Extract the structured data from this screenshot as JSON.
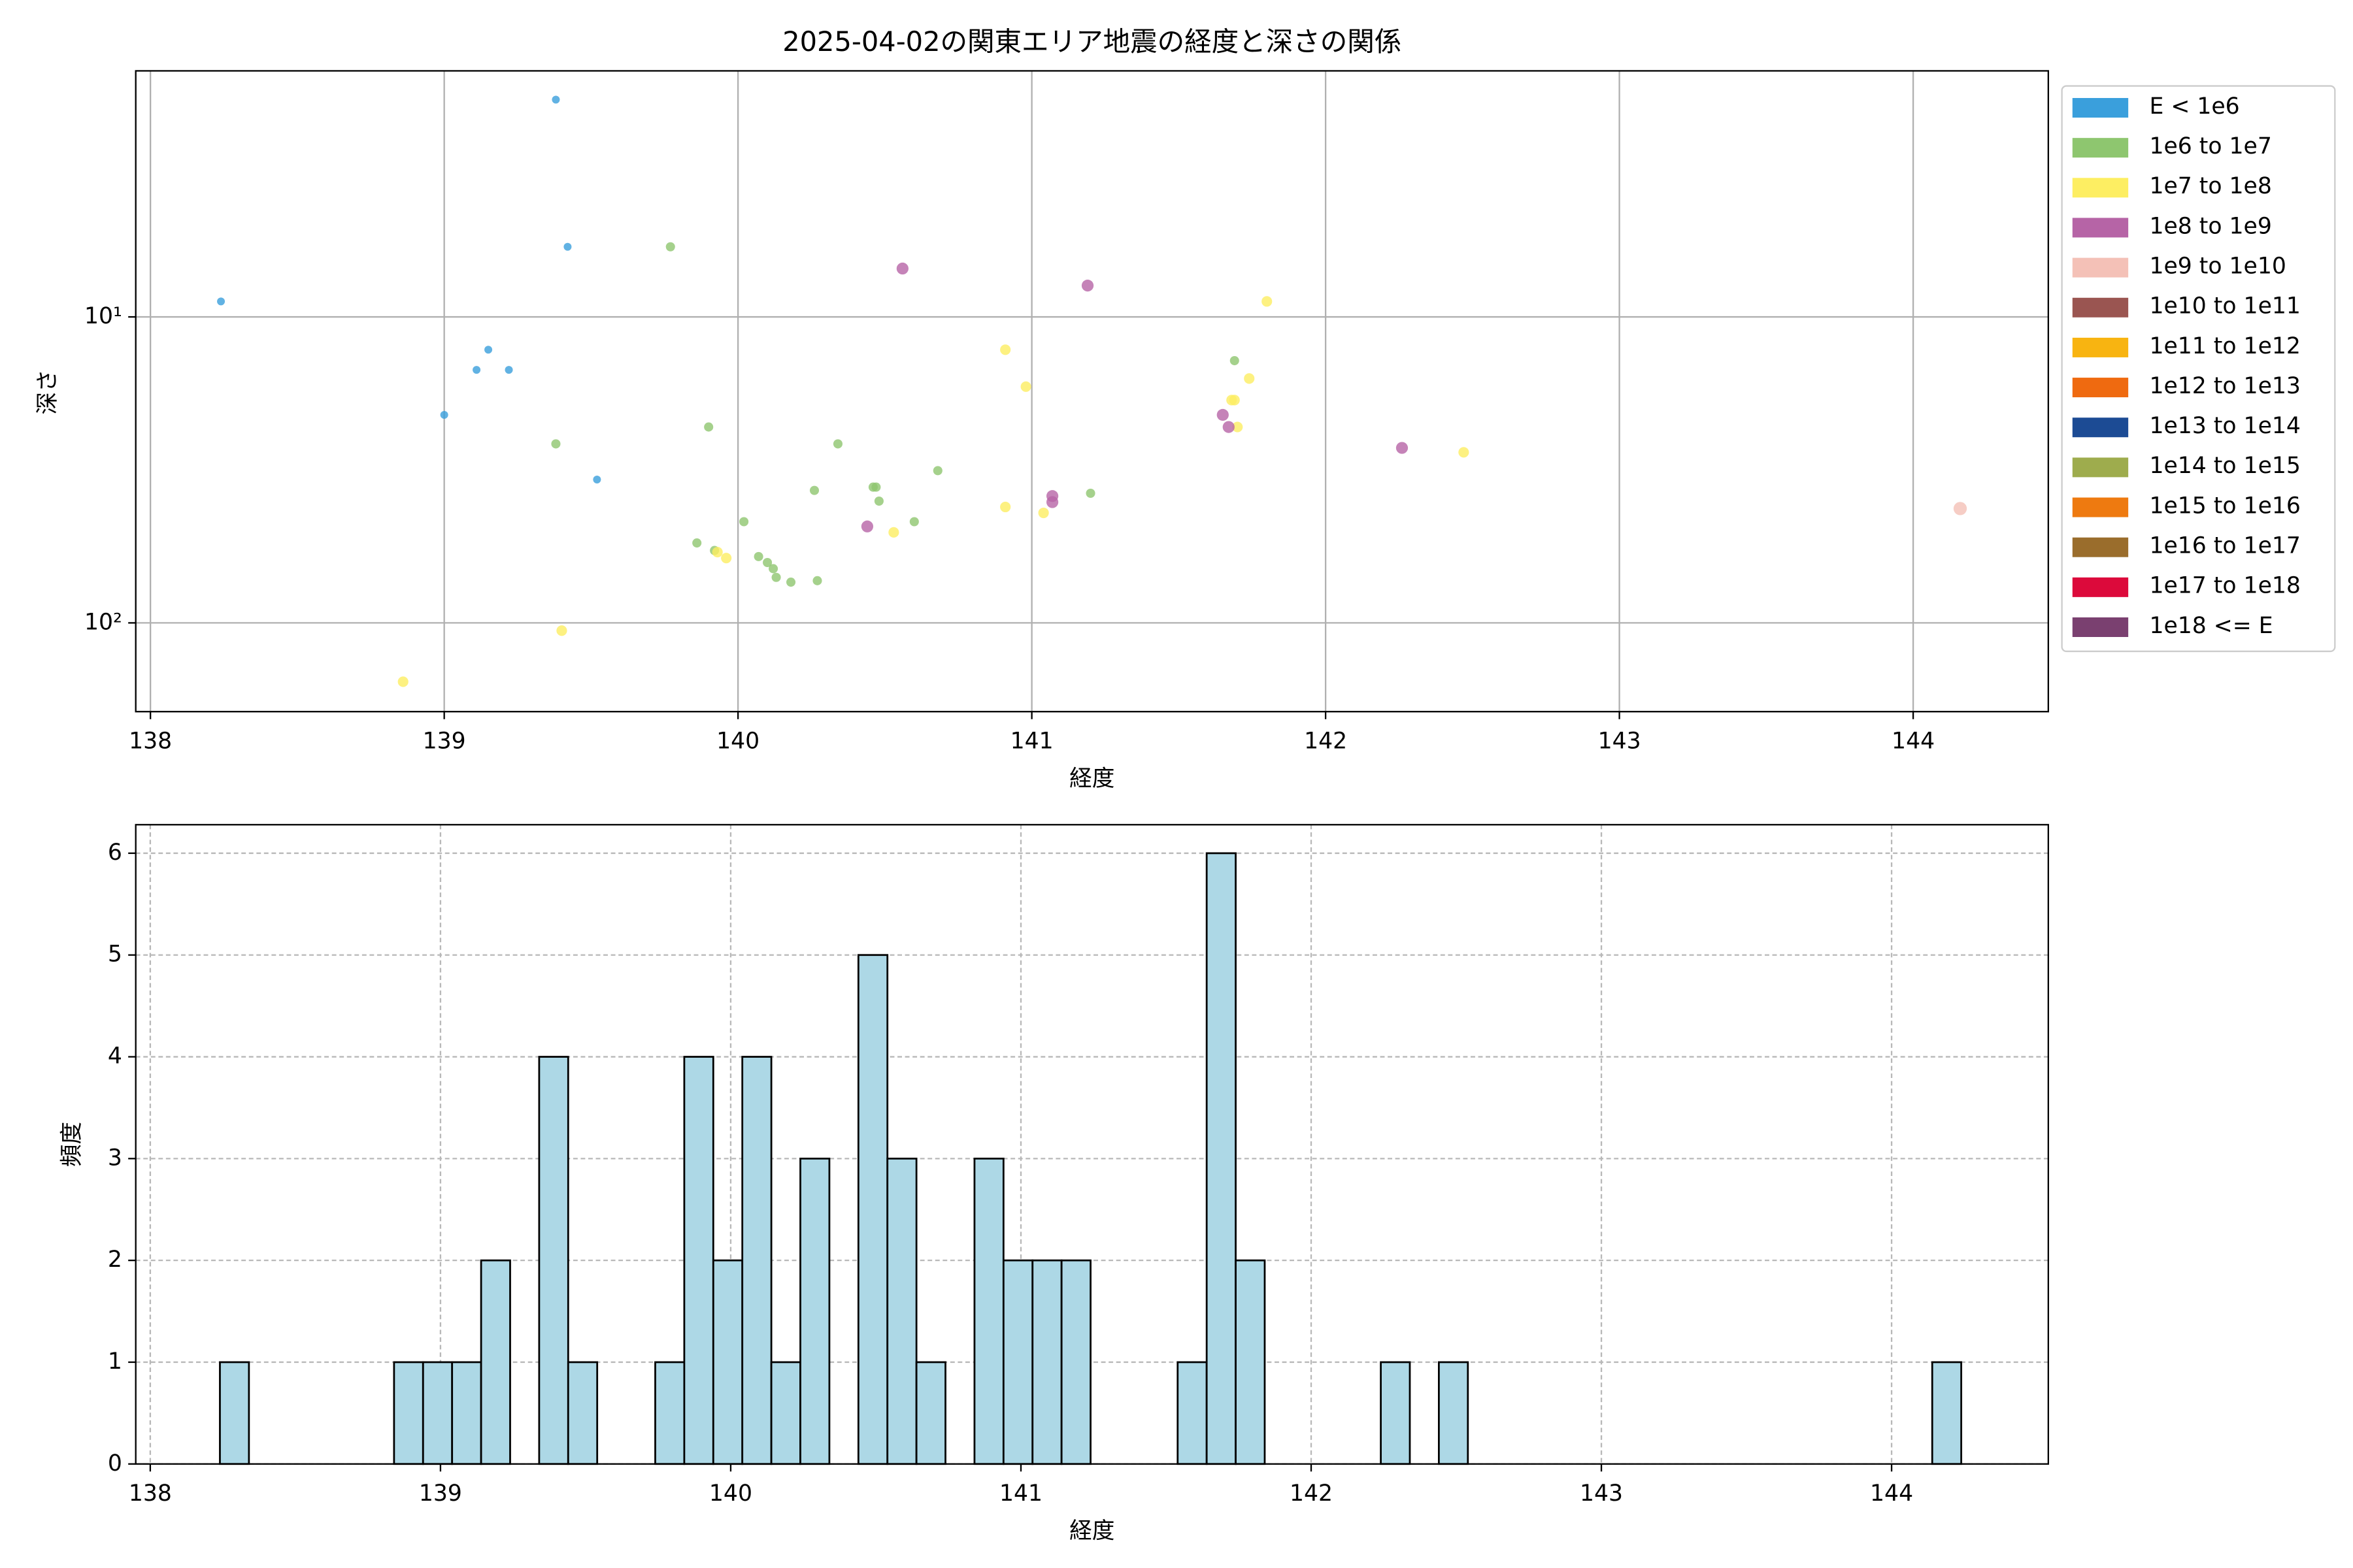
{
  "chart_data": [
    {
      "type": "scatter",
      "title": "2025-04-02の関東エリア地震の経度と深さの関係",
      "xlabel": "経度",
      "ylabel": "深さ",
      "xlim": [
        137.95,
        144.46
      ],
      "xticks": [
        138,
        139,
        140,
        141,
        142,
        143,
        144
      ],
      "ylim": [
        195,
        1.57
      ],
      "yscale": "log",
      "yticks": [
        {
          "value": 10,
          "label": "10¹"
        },
        {
          "value": 100,
          "label": "10²"
        }
      ],
      "grid": true,
      "grid_linestyle": "solid",
      "legend": "outside right",
      "series": [
        {
          "name": "E < 1e6",
          "color": "#3a9fdc",
          "x": [
            138.24,
            139.38,
            139.42,
            139.15,
            139.11,
            139.22,
            139.0,
            139.52
          ],
          "values": [
            8.9,
            1.95,
            5.9,
            12.8,
            14.9,
            14.9,
            20.9,
            34
          ]
        },
        {
          "name": "1e6 to 1e7",
          "color": "#8ec66f",
          "x": [
            139.77,
            139.38,
            139.9,
            140.34,
            140.46,
            140.48,
            140.26,
            140.68,
            141.2,
            141.69,
            140.02,
            140.6,
            139.86,
            139.92,
            140.07,
            140.1,
            140.12,
            140.13,
            140.18,
            140.27,
            140.47
          ],
          "values": [
            5.9,
            26,
            22.9,
            26,
            36,
            40,
            36.9,
            31.8,
            37.7,
            13.9,
            46.7,
            46.7,
            54.8,
            58,
            60.7,
            63.5,
            66.5,
            71,
            73.6,
            72.8,
            36
          ]
        },
        {
          "name": "1e7 to 1e8",
          "color": "#fdee62",
          "x": [
            138.86,
            139.4,
            140.91,
            140.98,
            141.8,
            141.74,
            141.69,
            141.68,
            141.7,
            142.47,
            140.91,
            141.04,
            140.53,
            139.93,
            139.96
          ],
          "values": [
            155.7,
            106,
            12.8,
            16.9,
            8.9,
            15.9,
            18.7,
            18.7,
            22.9,
            27.7,
            41.8,
            43.7,
            50.6,
            58.7,
            61.4
          ]
        },
        {
          "name": "1e8 to 1e9",
          "color": "#b664a6",
          "x": [
            140.56,
            141.19,
            141.65,
            141.67,
            142.26,
            141.07,
            141.07,
            140.44
          ],
          "values": [
            6.95,
            7.9,
            20.9,
            22.9,
            26.8,
            38.5,
            40.3,
            48.4
          ]
        },
        {
          "name": "1e9 to 1e10",
          "color": "#f4c1b7",
          "x": [
            144.16
          ],
          "values": [
            42.3
          ]
        },
        {
          "name": "1e10 to 1e11",
          "color": "#9a5551",
          "x": [],
          "values": []
        },
        {
          "name": "1e11 to 1e12",
          "color": "#f8b411",
          "x": [],
          "values": []
        },
        {
          "name": "1e12 to 1e13",
          "color": "#ef6a10",
          "x": [],
          "values": []
        },
        {
          "name": "1e13 to 1e14",
          "color": "#1c4b94",
          "x": [],
          "values": []
        },
        {
          "name": "1e14 to 1e15",
          "color": "#9eac4d",
          "x": [],
          "values": []
        },
        {
          "name": "1e15 to 1e16",
          "color": "#ee7a10",
          "x": [],
          "values": []
        },
        {
          "name": "1e16 to 1e17",
          "color": "#9a6d2c",
          "x": [],
          "values": []
        },
        {
          "name": "1e17 to 1e18",
          "color": "#dc0a3b",
          "x": [],
          "values": []
        },
        {
          "name": "1e18 <= E",
          "color": "#7a4070",
          "x": [],
          "values": []
        }
      ]
    },
    {
      "type": "histogram",
      "xlabel": "経度",
      "ylabel": "頻度",
      "color": "#add8e6",
      "edgecolor": "#000000",
      "xlim": [
        137.95,
        144.54
      ],
      "xticks": [
        138,
        139,
        140,
        141,
        142,
        143,
        144
      ],
      "ylim": [
        0,
        6.28
      ],
      "yticks": [
        0,
        1,
        2,
        3,
        4,
        5,
        6
      ],
      "grid": true,
      "grid_linestyle": "dashed",
      "bins": [
        138.24,
        138.34,
        138.44,
        138.54,
        138.64,
        138.74,
        138.84,
        138.94,
        139.04,
        139.14,
        139.24,
        139.34,
        139.44,
        139.54,
        139.64,
        139.74,
        139.84,
        139.94,
        140.04,
        140.14,
        140.24,
        140.34,
        140.44,
        140.54,
        140.64,
        140.74,
        140.84,
        140.94,
        141.04,
        141.14,
        141.24,
        141.34,
        141.44,
        141.54,
        141.64,
        141.74,
        141.84,
        141.94,
        142.04,
        142.14,
        142.24,
        142.34,
        142.44,
        142.54,
        142.64,
        142.74,
        142.84,
        142.94,
        143.04,
        143.14,
        143.24,
        143.34,
        143.44,
        143.54,
        143.64,
        143.74,
        143.84,
        143.94,
        144.04,
        144.14,
        144.24
      ],
      "values": [
        1,
        0,
        0,
        0,
        0,
        0,
        1,
        1,
        1,
        2,
        0,
        4,
        1,
        0,
        0,
        1,
        4,
        2,
        4,
        1,
        3,
        0,
        5,
        3,
        1,
        0,
        3,
        2,
        2,
        2,
        0,
        0,
        0,
        1,
        6,
        2,
        0,
        0,
        0,
        0,
        1,
        0,
        1,
        0,
        0,
        0,
        0,
        0,
        0,
        0,
        0,
        0,
        0,
        0,
        0,
        0,
        0,
        0,
        0,
        1
      ]
    }
  ]
}
